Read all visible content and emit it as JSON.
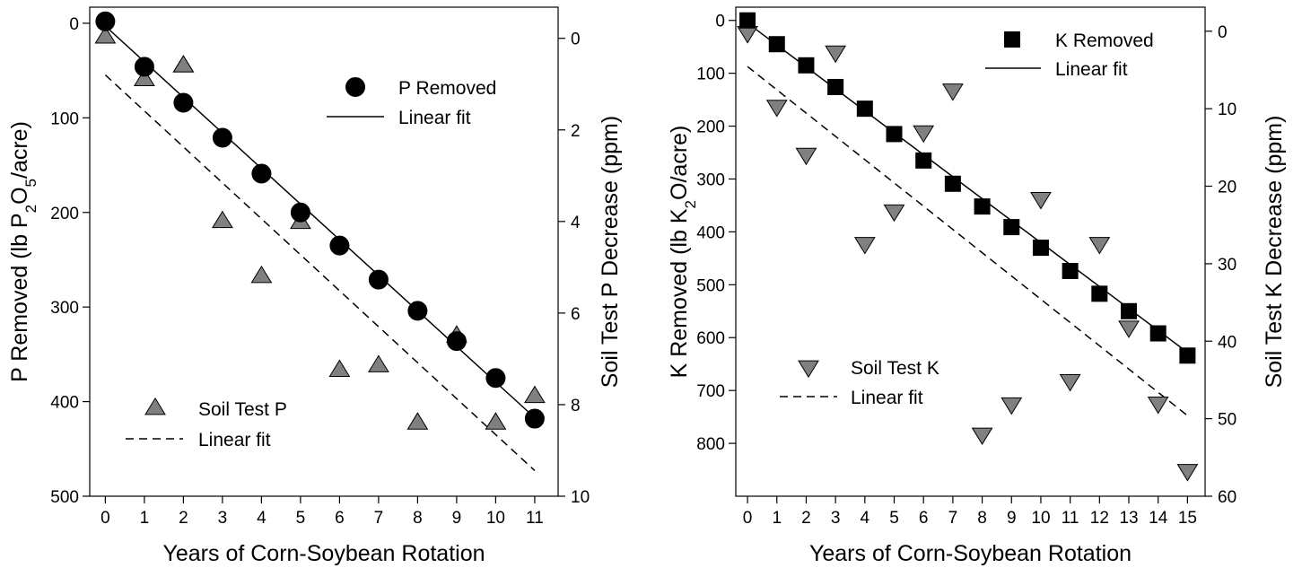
{
  "chart_data": [
    {
      "type": "scatter",
      "xlabel": "Years of Corn-Soybean Rotation",
      "ylabel_left": {
        "prefix": "P Removed (lb P",
        "sub": "2",
        "mid": "O",
        "sub2": "5",
        "suffix": "/acre)"
      },
      "ylabel_right": "Soil Test P Decrease (ppm)",
      "xlim": [
        -0.4,
        11.6
      ],
      "ylim_left": [
        500,
        -17
      ],
      "ylim_right": [
        10,
        -0.68
      ],
      "y_inverted": true,
      "xticks": [
        0,
        1,
        2,
        3,
        4,
        5,
        6,
        7,
        8,
        9,
        10,
        11
      ],
      "yticks_left": [
        0,
        100,
        200,
        300,
        400,
        500
      ],
      "yticks_right": [
        0,
        2,
        4,
        6,
        8,
        10
      ],
      "grid": false,
      "series": [
        {
          "name": "P Removed",
          "axis": "left",
          "marker": "circle",
          "color": "#000000",
          "x": [
            0,
            1,
            2,
            3,
            4,
            5,
            6,
            7,
            8,
            9,
            10,
            11
          ],
          "y": [
            -2,
            46,
            84,
            121,
            159,
            200,
            235,
            271,
            304,
            336,
            375,
            418
          ]
        },
        {
          "name": "Linear fit",
          "axis": "left",
          "style": "solid",
          "x": [
            0,
            11
          ],
          "y": [
            3,
            417
          ]
        },
        {
          "name": "Soil Test P",
          "axis": "right",
          "marker": "triangle-up",
          "color": "#808080",
          "x": [
            0,
            1,
            2,
            2,
            3,
            4,
            5,
            6,
            7,
            8,
            9,
            10,
            11
          ],
          "y": [
            -0.03,
            0.9,
            0.6,
            0.6,
            4.0,
            5.2,
            4.02,
            7.25,
            7.15,
            8.4,
            6.5,
            8.4,
            7.82
          ]
        },
        {
          "name": "Linear fit",
          "axis": "right",
          "style": "dashed",
          "x": [
            0,
            11
          ],
          "y": [
            0.8,
            9.44
          ]
        }
      ],
      "legend": [
        {
          "label": "P Removed",
          "position": "top-right"
        },
        {
          "label": "Linear fit",
          "position": "top-right"
        },
        {
          "label": "Soil Test P",
          "position": "bottom-left"
        },
        {
          "label": "Linear fit",
          "position": "bottom-left"
        }
      ]
    },
    {
      "type": "scatter",
      "xlabel": "Years of Corn-Soybean Rotation",
      "ylabel_left": {
        "prefix": "K Removed (lb K",
        "sub": "2",
        "mid": "O/acre)",
        "sub2": "",
        "suffix": ""
      },
      "ylabel_right": "Soil Test K Decrease (ppm)",
      "xlim": [
        -0.4,
        15.6
      ],
      "ylim_left": [
        900,
        -25
      ],
      "ylim_right": [
        60,
        -3.1
      ],
      "y_inverted": true,
      "xticks": [
        0,
        1,
        2,
        3,
        4,
        5,
        6,
        7,
        8,
        9,
        10,
        11,
        12,
        13,
        14,
        15
      ],
      "yticks_left": [
        0,
        100,
        200,
        300,
        400,
        500,
        600,
        700,
        800
      ],
      "yticks_right": [
        0,
        10,
        20,
        30,
        40,
        50,
        60
      ],
      "grid": false,
      "series": [
        {
          "name": "K Removed",
          "axis": "left",
          "marker": "square",
          "color": "#000000",
          "x": [
            0,
            1,
            2,
            3,
            4,
            5,
            6,
            7,
            8,
            9,
            10,
            11,
            12,
            13,
            14,
            15
          ],
          "y": [
            0,
            45,
            85,
            126,
            167,
            215,
            265,
            309,
            352,
            391,
            430,
            474,
            517,
            550,
            592,
            634
          ]
        },
        {
          "name": "Linear fit",
          "axis": "left",
          "style": "solid",
          "x": [
            0,
            15
          ],
          "y": [
            5,
            628
          ]
        },
        {
          "name": "Soil Test K",
          "axis": "right",
          "marker": "triangle-down",
          "color": "#808080",
          "x": [
            0,
            1,
            2,
            3,
            4,
            5,
            6,
            7,
            8,
            9,
            10,
            11,
            12,
            13,
            14,
            15
          ],
          "y": [
            0.2,
            9.7,
            15.9,
            2.7,
            27.4,
            23.2,
            13.0,
            7.6,
            52.0,
            48.1,
            21.6,
            45.1,
            27.4,
            38.2,
            48.0,
            56.7
          ]
        },
        {
          "name": "Linear fit",
          "axis": "right",
          "style": "dashed",
          "x": [
            0,
            15
          ],
          "y": [
            4.56,
            49.6
          ]
        }
      ],
      "legend": [
        {
          "label": "K Removed",
          "position": "top-right"
        },
        {
          "label": "Linear fit",
          "position": "top-right"
        },
        {
          "label": "Soil Test K",
          "position": "bottom-left"
        },
        {
          "label": "Linear fit",
          "position": "bottom-left"
        }
      ]
    }
  ]
}
